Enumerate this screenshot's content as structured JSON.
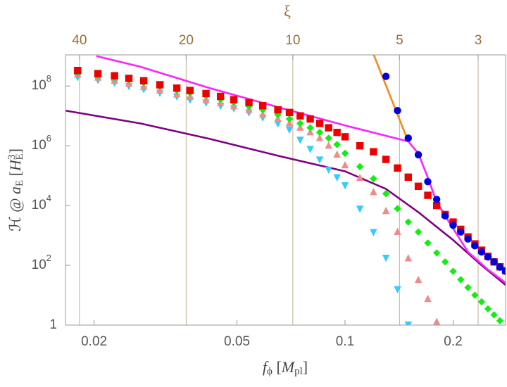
{
  "chart_data": {
    "type": "scatter",
    "xscale": "log",
    "yscale": "log",
    "xlim": [
      0.01665,
      0.28
    ],
    "ylim": [
      1,
      1100000000.0
    ],
    "xticks": [
      0.02,
      0.05,
      0.1,
      0.2
    ],
    "yticks": [
      1,
      {
        "value": 100,
        "label": "10",
        "exponent": "2"
      },
      {
        "value": 10000,
        "label": "10",
        "exponent": "4"
      },
      {
        "value": 1000000,
        "label": "10",
        "exponent": "6"
      },
      {
        "value": 100000000,
        "label": "10",
        "exponent": "8"
      }
    ],
    "x2scale": "log",
    "x2lim": [
      43.8,
      2.51
    ],
    "x2ticks": [
      40,
      20,
      10,
      5,
      3
    ],
    "x2grid": true,
    "x2color": "#9c6b30",
    "x2label": "ξ",
    "xlabel_parts": [
      "f",
      "ϕ",
      " [",
      "M",
      "pl",
      "]"
    ],
    "xlabel_styles": [
      "i",
      "sub",
      "",
      "i",
      "sub",
      ""
    ],
    "ylabel_parts": [
      "ℋ @ ",
      "a",
      "E",
      " [",
      "H",
      "3",
      "E",
      "]"
    ],
    "ylabel_styles": [
      "",
      "i",
      "sub",
      "",
      "i",
      "sup",
      "sub",
      ""
    ],
    "series": [
      {
        "type": "line",
        "color": "#800080",
        "x": [
          0.01665,
          0.0269,
          0.042,
          0.0657,
          0.1,
          0.13,
          0.16,
          0.2,
          0.24,
          0.28
        ],
        "values": [
          15000000.0,
          5600000.0,
          1700000.0,
          450000.0,
          140000.0,
          36000.0,
          6000,
          700,
          100,
          22
        ]
      },
      {
        "type": "line",
        "color": "#f5891e",
        "x": [
          0.119,
          0.15
        ],
        "values": [
          1500000000.0,
          1400000.0
        ]
      },
      {
        "type": "line",
        "color": "#ff22ff",
        "x": [
          0.0203,
          0.0269,
          0.042,
          0.0657,
          0.1027,
          0.15,
          0.16,
          0.17,
          0.18,
          0.2,
          0.22,
          0.25,
          0.28
        ],
        "values": [
          1000000000.0,
          440000000.0,
          85000000.0,
          19000000.0,
          4400000.0,
          1400000.0,
          550000.0,
          87000.0,
          13000.0,
          1700,
          280,
          72,
          26
        ]
      },
      {
        "type": "scatter",
        "marker": "triangle-down",
        "color": "#33ccff",
        "x": [
          0.018,
          0.0205,
          0.0228,
          0.025,
          0.0275,
          0.0305,
          0.034,
          0.037,
          0.041,
          0.045,
          0.049,
          0.054,
          0.059,
          0.065,
          0.07,
          0.075,
          0.08,
          0.085,
          0.09,
          0.095,
          0.1,
          0.11,
          0.12,
          0.13,
          0.14,
          0.15
        ],
        "values": [
          200000000.0,
          160000000.0,
          130000000.0,
          100000000.0,
          79000000.0,
          60000000.0,
          45000000.0,
          35000000.0,
          28000000.0,
          22000000.0,
          18000000.0,
          13000000.0,
          8900000.0,
          5600000.0,
          3500000.0,
          1600000.0,
          790000.0,
          350000.0,
          160000.0,
          89000.0,
          48000.0,
          7900,
          1300,
          180,
          16,
          1.05
        ]
      },
      {
        "type": "scatter",
        "marker": "triangle-up",
        "color": "#f28a8a",
        "x": [
          0.018,
          0.0205,
          0.0228,
          0.025,
          0.0275,
          0.0305,
          0.034,
          0.037,
          0.041,
          0.045,
          0.049,
          0.054,
          0.059,
          0.065,
          0.07,
          0.075,
          0.08,
          0.085,
          0.09,
          0.095,
          0.1,
          0.11,
          0.12,
          0.13,
          0.14,
          0.15,
          0.16,
          0.17,
          0.18
        ],
        "values": [
          240000000.0,
          190000000.0,
          150000000.0,
          120000000.0,
          93000000.0,
          71000000.0,
          52000000.0,
          43000000.0,
          34000000.0,
          27000000.0,
          21000000.0,
          16000000.0,
          11000000.0,
          7900000.0,
          5600000.0,
          4000000.0,
          2800000.0,
          1800000.0,
          1000000.0,
          500000.0,
          220000.0,
          83000.0,
          28000.0,
          6500,
          1300,
          170,
          32,
          7.4,
          1.26
        ]
      },
      {
        "type": "scatter",
        "marker": "diamond",
        "color": "#11ee11",
        "x": [
          0.018,
          0.0205,
          0.0228,
          0.025,
          0.0275,
          0.0305,
          0.034,
          0.037,
          0.041,
          0.045,
          0.049,
          0.054,
          0.059,
          0.065,
          0.07,
          0.075,
          0.08,
          0.085,
          0.09,
          0.095,
          0.1,
          0.11,
          0.12,
          0.13,
          0.14,
          0.15,
          0.16,
          0.17,
          0.18,
          0.19,
          0.2,
          0.21,
          0.22,
          0.23,
          0.24,
          0.25,
          0.26,
          0.27
        ],
        "values": [
          280000000.0,
          220000000.0,
          190000000.0,
          160000000.0,
          130000000.0,
          95000000.0,
          71000000.0,
          59000000.0,
          47000000.0,
          36000000.0,
          28000000.0,
          21000000.0,
          16000000.0,
          11000000.0,
          7900000.0,
          5600000.0,
          4000000.0,
          2800000.0,
          1800000.0,
          1100000.0,
          560000.0,
          200000.0,
          79000.0,
          25000.0,
          7900,
          2800,
          1300,
          560,
          260,
          130,
          63,
          33,
          18,
          10,
          6,
          3.5,
          2.2,
          1.4
        ]
      },
      {
        "type": "scatter",
        "marker": "square",
        "color": "#ee0000",
        "x": [
          0.018,
          0.0205,
          0.0228,
          0.025,
          0.0275,
          0.0305,
          0.034,
          0.037,
          0.041,
          0.045,
          0.049,
          0.054,
          0.059,
          0.065,
          0.07,
          0.075,
          0.08,
          0.085,
          0.09,
          0.095,
          0.1,
          0.11,
          0.12,
          0.13,
          0.14,
          0.15,
          0.16,
          0.17,
          0.18,
          0.19,
          0.2,
          0.21,
          0.22,
          0.23,
          0.24,
          0.25,
          0.26,
          0.27,
          0.28
        ],
        "values": [
          330000000.0,
          260000000.0,
          220000000.0,
          180000000.0,
          150000000.0,
          110000000.0,
          85000000.0,
          71000000.0,
          56000000.0,
          45000000.0,
          35000000.0,
          28000000.0,
          22000000.0,
          16000000.0,
          13000000.0,
          10000000.0,
          7900000.0,
          5600000.0,
          4000000.0,
          2800000.0,
          2000000.0,
          1000000.0,
          630000.0,
          350000.0,
          180000.0,
          89000.0,
          44000.0,
          22000.0,
          10000.0,
          5000,
          2800,
          1600,
          890,
          520,
          320,
          200,
          130,
          89,
          66
        ]
      },
      {
        "type": "scatter",
        "marker": "circle",
        "color": "#0000dd",
        "x": [
          0.13,
          0.14,
          0.15,
          0.16,
          0.17,
          0.18,
          0.19,
          0.2,
          0.21,
          0.22,
          0.23,
          0.24,
          0.25,
          0.26,
          0.27,
          0.28
        ],
        "values": [
          210000000.0,
          15000000.0,
          1800000.0,
          500000.0,
          63000.0,
          16000.0,
          4500,
          2200,
          1300,
          760,
          450,
          280,
          190,
          130,
          87,
          63
        ]
      }
    ]
  }
}
